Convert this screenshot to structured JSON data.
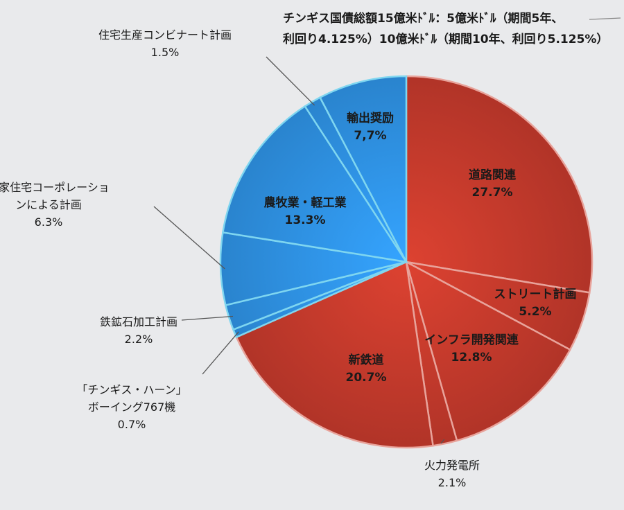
{
  "chart_data": {
    "type": "pie",
    "title_lines": [
      "チンギス国債総額15億米ﾄﾞﾙ：5億米ﾄﾞﾙ（期間5年、",
      "利回り4.125%）10億米ﾄﾞﾙ（期間10年、利回り5.125%）"
    ],
    "slices": [
      {
        "name": "道路関連",
        "value": 27.7,
        "label": "27.7%",
        "color": "#c0392b",
        "placement": "inside"
      },
      {
        "name": "ストリート計画",
        "value": 5.2,
        "label": "5.2%",
        "color": "#c0392b",
        "placement": "inside"
      },
      {
        "name": "インフラ開発関連",
        "value": 12.8,
        "label": "12.8%",
        "color": "#c0392b",
        "placement": "inside"
      },
      {
        "name": "火力発電所",
        "value": 2.1,
        "label": "2.1%",
        "color": "#c0392b",
        "placement": "outside"
      },
      {
        "name": "新鉄道",
        "value": 20.7,
        "label": "20.7%",
        "color": "#c0392b",
        "placement": "inside"
      },
      {
        "name": "「チンギス・ハーン」ボーイング767機",
        "value": 0.7,
        "label": "0.7%",
        "color": "#2e8fe0",
        "placement": "outside"
      },
      {
        "name": "鉄鉱石加工計画",
        "value": 2.2,
        "label": "2.2%",
        "color": "#2e8fe0",
        "placement": "outside"
      },
      {
        "name": "国家住宅コーポレーションによる計画",
        "value": 6.3,
        "label": "6.3%",
        "color": "#2e8fe0",
        "placement": "outside"
      },
      {
        "name": "農牧業・軽工業",
        "value": 13.3,
        "label": "13.3%",
        "color": "#2e8fe0",
        "placement": "inside"
      },
      {
        "name": "住宅生産コンビナート計画",
        "value": 1.5,
        "label": "1.5%",
        "color": "#2e8fe0",
        "placement": "outside"
      },
      {
        "name": "輸出奨励",
        "value": 7.7,
        "label": "7,7%",
        "color": "#2e8fe0",
        "placement": "inside"
      }
    ],
    "label_lines": [
      [
        "道路関連",
        "27.7%"
      ],
      [
        "ストリート計画",
        "5.2%"
      ],
      [
        "インフラ開発関連",
        "12.8%"
      ],
      [
        "火力発電所",
        "2.1%"
      ],
      [
        "新鉄道",
        "20.7%"
      ],
      [
        "「チンギス・ハーン」",
        "ボーイング767機",
        "0.7%"
      ],
      [
        "鉄鉱石加工計画",
        "2.2%"
      ],
      [
        "国家住宅コーポレーショ",
        "ンによる計画",
        "6.3%"
      ],
      [
        "農牧業・軽工業",
        "13.3%"
      ],
      [
        "住宅生産コンビナート計画",
        "1.5%"
      ],
      [
        "輸出奨励",
        "7,7%"
      ]
    ]
  }
}
